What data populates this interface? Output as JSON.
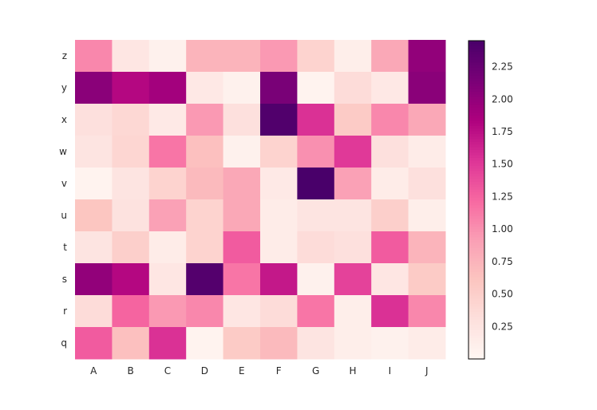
{
  "chart_data": {
    "type": "heatmap",
    "colormap": "RdPu",
    "colormap_stops": [
      "#fff7f3",
      "#fde0dd",
      "#fcc5c0",
      "#fa9fb5",
      "#f768a1",
      "#dd3497",
      "#ae017e",
      "#7a0177",
      "#49006a"
    ],
    "vmin": 0.0,
    "vmax": 2.45,
    "colorbar_ticks": [
      "0.25",
      "0.50",
      "0.75",
      "1.00",
      "1.25",
      "1.50",
      "1.75",
      "2.00",
      "2.25"
    ],
    "x_categories": [
      "A",
      "B",
      "C",
      "D",
      "E",
      "F",
      "G",
      "H",
      "I",
      "J"
    ],
    "y_categories": [
      "z",
      "y",
      "x",
      "w",
      "v",
      "u",
      "t",
      "s",
      "r",
      "q"
    ],
    "values": [
      [
        1.05,
        0.22,
        0.08,
        0.75,
        0.75,
        0.95,
        0.45,
        0.12,
        0.85,
        2.0
      ],
      [
        2.05,
        1.8,
        1.9,
        0.2,
        0.08,
        2.15,
        0.05,
        0.35,
        0.2,
        2.05
      ],
      [
        0.3,
        0.4,
        0.18,
        0.95,
        0.3,
        2.4,
        1.55,
        0.55,
        1.05,
        0.85
      ],
      [
        0.25,
        0.42,
        1.15,
        0.65,
        0.08,
        0.45,
        1.0,
        1.5,
        0.3,
        0.15
      ],
      [
        0.05,
        0.25,
        0.45,
        0.7,
        0.85,
        0.18,
        2.45,
        0.9,
        0.15,
        0.3
      ],
      [
        0.6,
        0.28,
        0.9,
        0.45,
        0.85,
        0.15,
        0.25,
        0.25,
        0.5,
        0.12
      ],
      [
        0.25,
        0.5,
        0.15,
        0.45,
        1.3,
        0.15,
        0.35,
        0.3,
        1.3,
        0.75
      ],
      [
        2.0,
        1.8,
        0.22,
        2.38,
        1.15,
        1.7,
        0.08,
        1.45,
        0.22,
        0.55
      ],
      [
        0.35,
        1.25,
        0.95,
        1.05,
        0.22,
        0.35,
        1.15,
        0.12,
        1.55,
        1.05
      ],
      [
        1.3,
        0.65,
        1.55,
        0.05,
        0.55,
        0.7,
        0.25,
        0.12,
        0.08,
        0.15
      ]
    ],
    "title": "",
    "xlabel": "",
    "ylabel": "",
    "grid": false,
    "colorbar_position": "right"
  }
}
